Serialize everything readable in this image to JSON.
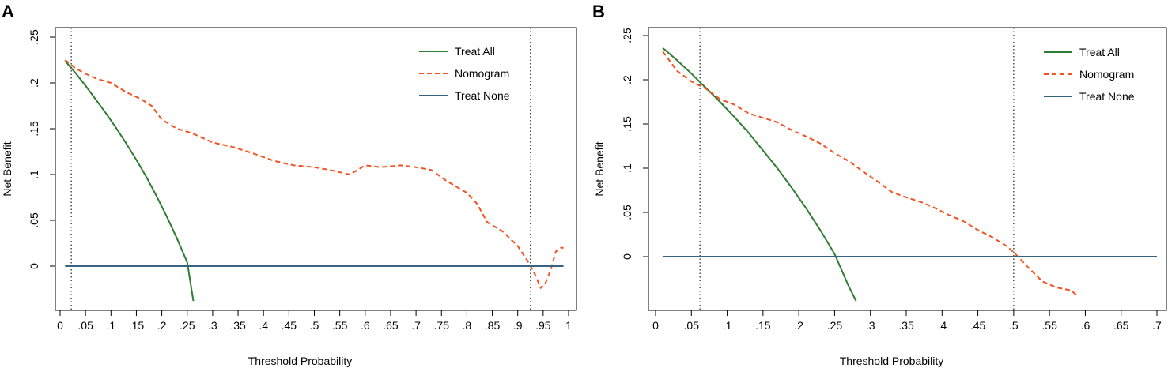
{
  "chart_data": [
    {
      "type": "line",
      "panel_label": "A",
      "xlabel": "Threshold Probability",
      "ylabel": "Net Benefit",
      "xlim": [
        0,
        1
      ],
      "ylim": [
        -0.04,
        0.25
      ],
      "x_ticks": [
        0,
        0.05,
        0.1,
        0.15,
        0.2,
        0.25,
        0.3,
        0.35,
        0.4,
        0.45,
        0.5,
        0.55,
        0.6,
        0.65,
        0.7,
        0.75,
        0.8,
        0.85,
        0.9,
        0.95,
        1
      ],
      "x_tick_labels": [
        "0",
        ".05",
        ".1",
        ".15",
        ".2",
        ".25",
        ".3",
        ".35",
        ".4",
        ".45",
        ".5",
        ".55",
        ".6",
        ".65",
        ".7",
        ".75",
        ".8",
        ".85",
        ".9",
        ".95",
        "1"
      ],
      "y_ticks": [
        0,
        0.05,
        0.1,
        0.15,
        0.2,
        0.25
      ],
      "y_tick_labels": [
        "0",
        ".05",
        ".1",
        ".15",
        ".2",
        ".25"
      ],
      "vlines": [
        0.022,
        0.925
      ],
      "legend": [
        "Treat All",
        "Nomogram",
        "Treat None"
      ],
      "series": [
        {
          "name": "Treat All",
          "color": "#2e7d32",
          "style": "solid",
          "x": [
            0.01,
            0.03,
            0.05,
            0.07,
            0.09,
            0.11,
            0.13,
            0.15,
            0.17,
            0.19,
            0.21,
            0.23,
            0.25,
            0.262
          ],
          "y": [
            0.224,
            0.211,
            0.197,
            0.182,
            0.167,
            0.151,
            0.134,
            0.116,
            0.097,
            0.076,
            0.054,
            0.03,
            0.004,
            -0.038
          ]
        },
        {
          "name": "Nomogram",
          "color": "#f4511e",
          "style": "dashed",
          "x": [
            0.01,
            0.03,
            0.05,
            0.07,
            0.1,
            0.13,
            0.16,
            0.18,
            0.2,
            0.23,
            0.26,
            0.3,
            0.34,
            0.38,
            0.42,
            0.46,
            0.5,
            0.53,
            0.57,
            0.6,
            0.63,
            0.67,
            0.7,
            0.73,
            0.76,
            0.8,
            0.82,
            0.84,
            0.87,
            0.9,
            0.92,
            0.935,
            0.945,
            0.955,
            0.965,
            0.975,
            0.985,
            0.99
          ],
          "y": [
            0.225,
            0.216,
            0.21,
            0.205,
            0.2,
            0.19,
            0.182,
            0.175,
            0.16,
            0.15,
            0.145,
            0.135,
            0.13,
            0.123,
            0.115,
            0.11,
            0.108,
            0.105,
            0.1,
            0.11,
            0.108,
            0.11,
            0.108,
            0.105,
            0.093,
            0.08,
            0.068,
            0.048,
            0.038,
            0.022,
            0.005,
            -0.01,
            -0.024,
            -0.018,
            -0.004,
            0.016,
            0.02,
            0.02
          ]
        },
        {
          "name": "Treat None",
          "color": "#37637f",
          "style": "solid",
          "x": [
            0.01,
            0.99
          ],
          "y": [
            0,
            0
          ]
        }
      ]
    },
    {
      "type": "line",
      "panel_label": "B",
      "xlabel": "Threshold Probability",
      "ylabel": "Net Benefit",
      "xlim": [
        0,
        0.7
      ],
      "ylim": [
        -0.05,
        0.25
      ],
      "x_ticks": [
        0,
        0.05,
        0.1,
        0.15,
        0.2,
        0.25,
        0.3,
        0.35,
        0.4,
        0.45,
        0.5,
        0.55,
        0.6,
        0.65,
        0.7
      ],
      "x_tick_labels": [
        "0",
        ".05",
        ".1",
        ".15",
        ".2",
        ".25",
        ".3",
        ".35",
        ".4",
        ".45",
        ".5",
        ".55",
        ".6",
        ".65",
        ".7"
      ],
      "y_ticks": [
        0,
        0.05,
        0.1,
        0.15,
        0.2,
        0.25
      ],
      "y_tick_labels": [
        "0",
        ".05",
        ".1",
        ".15",
        ".2",
        ".25"
      ],
      "vlines": [
        0.062,
        0.5
      ],
      "legend": [
        "Treat All",
        "Nomogram",
        "Treat None"
      ],
      "series": [
        {
          "name": "Treat All",
          "color": "#2e7d32",
          "style": "solid",
          "x": [
            0.01,
            0.03,
            0.05,
            0.07,
            0.09,
            0.11,
            0.13,
            0.15,
            0.17,
            0.19,
            0.21,
            0.23,
            0.25,
            0.27,
            0.28
          ],
          "y": [
            0.236,
            0.222,
            0.207,
            0.191,
            0.175,
            0.158,
            0.14,
            0.12,
            0.1,
            0.078,
            0.055,
            0.03,
            0.003,
            -0.034,
            -0.05
          ]
        },
        {
          "name": "Nomogram",
          "color": "#f4511e",
          "style": "dashed",
          "x": [
            0.01,
            0.03,
            0.05,
            0.07,
            0.09,
            0.11,
            0.13,
            0.15,
            0.17,
            0.19,
            0.21,
            0.23,
            0.25,
            0.27,
            0.29,
            0.31,
            0.33,
            0.35,
            0.37,
            0.39,
            0.41,
            0.43,
            0.45,
            0.47,
            0.49,
            0.5,
            0.52,
            0.54,
            0.56,
            0.58,
            0.59
          ],
          "y": [
            0.232,
            0.21,
            0.198,
            0.19,
            0.178,
            0.172,
            0.162,
            0.157,
            0.152,
            0.143,
            0.136,
            0.128,
            0.117,
            0.108,
            0.096,
            0.085,
            0.073,
            0.067,
            0.062,
            0.055,
            0.047,
            0.04,
            0.03,
            0.022,
            0.012,
            0.005,
            -0.012,
            -0.028,
            -0.035,
            -0.038,
            -0.045
          ]
        },
        {
          "name": "Treat None",
          "color": "#37637f",
          "style": "solid",
          "x": [
            0.01,
            0.7
          ],
          "y": [
            0,
            0
          ]
        }
      ]
    }
  ]
}
